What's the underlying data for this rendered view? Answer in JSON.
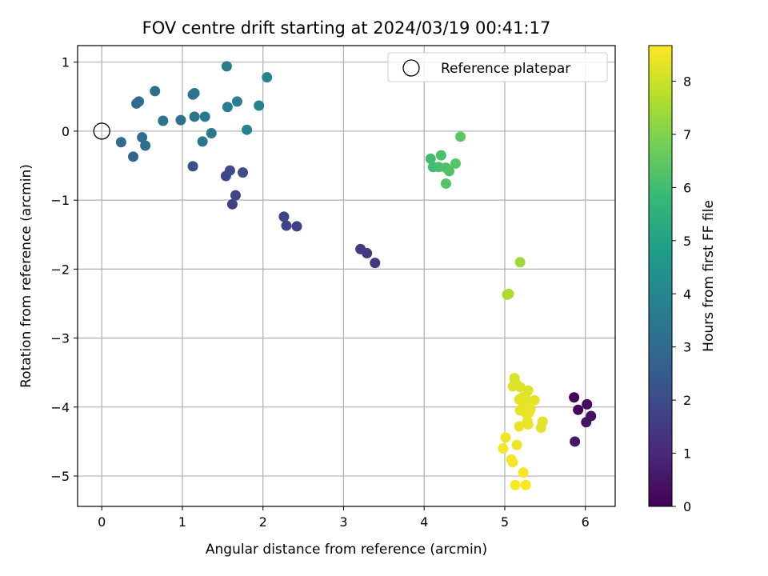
{
  "chart_data": {
    "type": "scatter",
    "title": "FOV centre drift starting at 2024/03/19 00:41:17",
    "xlabel": "Angular distance from reference (arcmin)",
    "ylabel": "Rotation from reference (arcmin)",
    "xlim": [
      -0.3,
      6.37
    ],
    "ylim": [
      -5.44,
      1.24
    ],
    "xticks": [
      0,
      1,
      2,
      3,
      4,
      5,
      6
    ],
    "yticks": [
      1,
      0,
      -1,
      -2,
      -3,
      -4,
      -5
    ],
    "grid": true,
    "legend": {
      "label": "Reference platepar",
      "placement": "top-right"
    },
    "reference_point": {
      "x": 0,
      "y": 0
    },
    "colorbar": {
      "label": "Hours from first FF file",
      "colormap": "viridis",
      "range": [
        0,
        8.67
      ],
      "ticks": [
        0,
        1,
        2,
        3,
        4,
        5,
        6,
        7,
        8
      ],
      "colors": [
        "#440154",
        "#482878",
        "#3e4989",
        "#31688e",
        "#26828e",
        "#1f9e89",
        "#35b779",
        "#6ece58",
        "#b5de2b",
        "#fde725"
      ]
    },
    "points": [
      {
        "x": 5.86,
        "y": -3.86,
        "hours": 0.05
      },
      {
        "x": 5.91,
        "y": -4.04,
        "hours": 0.15
      },
      {
        "x": 6.02,
        "y": -3.96,
        "hours": 0.25
      },
      {
        "x": 6.07,
        "y": -4.13,
        "hours": 0.35
      },
      {
        "x": 6.01,
        "y": -4.22,
        "hours": 0.45
      },
      {
        "x": 5.87,
        "y": -4.5,
        "hours": 0.55
      },
      {
        "x": 1.62,
        "y": -1.06,
        "hours": 1.7
      },
      {
        "x": 1.66,
        "y": -0.93,
        "hours": 1.8
      },
      {
        "x": 1.54,
        "y": -0.65,
        "hours": 1.9
      },
      {
        "x": 1.59,
        "y": -0.57,
        "hours": 1.95
      },
      {
        "x": 1.75,
        "y": -0.6,
        "hours": 2.0
      },
      {
        "x": 1.13,
        "y": -0.51,
        "hours": 2.1
      },
      {
        "x": 2.26,
        "y": -1.24,
        "hours": 1.8
      },
      {
        "x": 2.29,
        "y": -1.37,
        "hours": 1.75
      },
      {
        "x": 2.42,
        "y": -1.38,
        "hours": 1.7
      },
      {
        "x": 3.21,
        "y": -1.71,
        "hours": 1.5
      },
      {
        "x": 3.29,
        "y": -1.77,
        "hours": 1.45
      },
      {
        "x": 3.39,
        "y": -1.91,
        "hours": 1.4
      },
      {
        "x": 0.24,
        "y": -0.16,
        "hours": 3.0
      },
      {
        "x": 0.39,
        "y": -0.37,
        "hours": 2.8
      },
      {
        "x": 0.43,
        "y": 0.4,
        "hours": 3.0
      },
      {
        "x": 0.46,
        "y": 0.43,
        "hours": 3.05
      },
      {
        "x": 0.5,
        "y": -0.09,
        "hours": 3.1
      },
      {
        "x": 0.54,
        "y": -0.21,
        "hours": 3.15
      },
      {
        "x": 0.66,
        "y": 0.58,
        "hours": 3.2
      },
      {
        "x": 0.76,
        "y": 0.15,
        "hours": 3.25
      },
      {
        "x": 0.98,
        "y": 0.16,
        "hours": 3.3
      },
      {
        "x": 1.13,
        "y": 0.53,
        "hours": 3.35
      },
      {
        "x": 1.15,
        "y": 0.55,
        "hours": 3.35
      },
      {
        "x": 1.15,
        "y": 0.21,
        "hours": 3.4
      },
      {
        "x": 1.25,
        "y": -0.15,
        "hours": 3.45
      },
      {
        "x": 1.28,
        "y": 0.21,
        "hours": 3.5
      },
      {
        "x": 1.36,
        "y": -0.03,
        "hours": 3.55
      },
      {
        "x": 1.55,
        "y": 0.94,
        "hours": 3.6
      },
      {
        "x": 1.56,
        "y": 0.35,
        "hours": 3.65
      },
      {
        "x": 1.68,
        "y": 0.43,
        "hours": 3.7
      },
      {
        "x": 1.8,
        "y": 0.02,
        "hours": 3.8
      },
      {
        "x": 1.95,
        "y": 0.37,
        "hours": 3.9
      },
      {
        "x": 2.05,
        "y": 0.78,
        "hours": 3.95
      },
      {
        "x": 4.08,
        "y": -0.4,
        "hours": 6.0
      },
      {
        "x": 4.11,
        "y": -0.52,
        "hours": 6.05
      },
      {
        "x": 4.18,
        "y": -0.52,
        "hours": 6.1
      },
      {
        "x": 4.21,
        "y": -0.35,
        "hours": 6.15
      },
      {
        "x": 4.27,
        "y": -0.53,
        "hours": 6.2
      },
      {
        "x": 4.31,
        "y": -0.58,
        "hours": 6.25
      },
      {
        "x": 4.27,
        "y": -0.76,
        "hours": 6.3
      },
      {
        "x": 4.39,
        "y": -0.47,
        "hours": 6.35
      },
      {
        "x": 4.45,
        "y": -0.08,
        "hours": 6.4
      },
      {
        "x": 5.19,
        "y": -1.9,
        "hours": 7.4
      },
      {
        "x": 5.03,
        "y": -2.37,
        "hours": 7.55
      },
      {
        "x": 5.05,
        "y": -2.36,
        "hours": 7.6
      },
      {
        "x": 5.12,
        "y": -3.58,
        "hours": 8.2
      },
      {
        "x": 5.13,
        "y": -3.64,
        "hours": 8.2
      },
      {
        "x": 5.1,
        "y": -3.7,
        "hours": 8.25
      },
      {
        "x": 5.19,
        "y": -3.71,
        "hours": 8.25
      },
      {
        "x": 5.29,
        "y": -3.76,
        "hours": 8.25
      },
      {
        "x": 5.22,
        "y": -3.86,
        "hours": 8.3
      },
      {
        "x": 5.18,
        "y": -3.89,
        "hours": 8.3
      },
      {
        "x": 5.28,
        "y": -3.9,
        "hours": 8.3
      },
      {
        "x": 5.37,
        "y": -3.9,
        "hours": 8.35
      },
      {
        "x": 5.23,
        "y": -3.97,
        "hours": 8.35
      },
      {
        "x": 5.19,
        "y": -4.05,
        "hours": 8.35
      },
      {
        "x": 5.32,
        "y": -4.03,
        "hours": 8.35
      },
      {
        "x": 5.27,
        "y": -4.1,
        "hours": 8.4
      },
      {
        "x": 5.3,
        "y": -4.08,
        "hours": 8.4
      },
      {
        "x": 5.28,
        "y": -4.21,
        "hours": 8.4
      },
      {
        "x": 5.29,
        "y": -4.25,
        "hours": 8.4
      },
      {
        "x": 5.47,
        "y": -4.21,
        "hours": 8.3
      },
      {
        "x": 5.45,
        "y": -4.3,
        "hours": 8.3
      },
      {
        "x": 5.18,
        "y": -4.28,
        "hours": 8.4
      },
      {
        "x": 5.01,
        "y": -4.44,
        "hours": 8.5
      },
      {
        "x": 4.98,
        "y": -4.6,
        "hours": 8.55
      },
      {
        "x": 5.15,
        "y": -4.55,
        "hours": 8.5
      },
      {
        "x": 5.08,
        "y": -4.76,
        "hours": 8.55
      },
      {
        "x": 5.1,
        "y": -4.8,
        "hours": 8.55
      },
      {
        "x": 5.23,
        "y": -4.95,
        "hours": 8.6
      },
      {
        "x": 5.13,
        "y": -5.13,
        "hours": 8.65
      },
      {
        "x": 5.26,
        "y": -5.13,
        "hours": 8.65
      }
    ]
  }
}
